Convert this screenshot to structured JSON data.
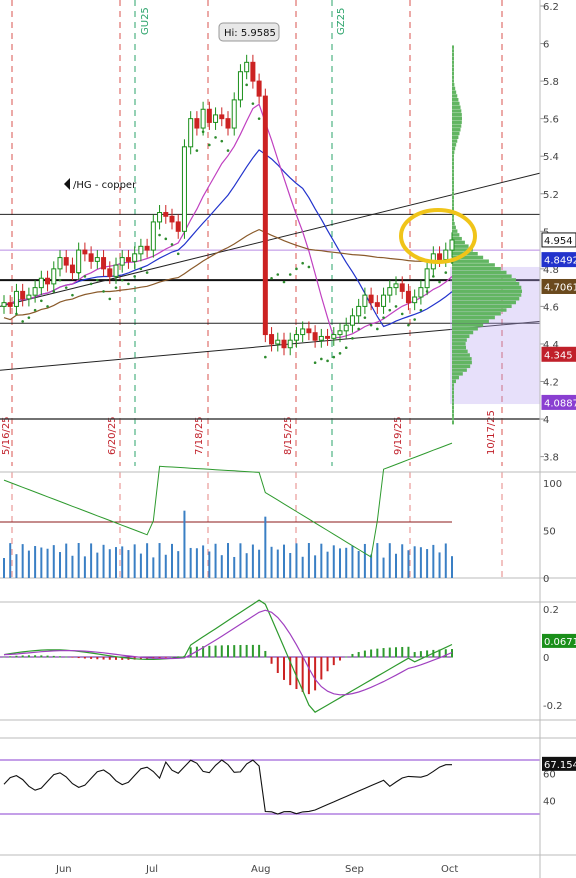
{
  "chart_data": {
    "type": "candlestick",
    "symbol_label": "/HG - copper",
    "x_month_labels": [
      "Jun",
      "Jul",
      "Aug",
      "Sep",
      "Oct"
    ],
    "date_markers": [
      "5/16/25",
      "6/20/25",
      "7/18/25",
      "8/15/25",
      "9/19/25",
      "10/17/25"
    ],
    "expiry_markers": [
      "GU25",
      "GZ25"
    ],
    "price_axis": {
      "ticks": [
        3.8,
        4.0,
        4.2,
        4.4,
        4.6,
        4.8,
        5.0,
        5.2,
        5.4,
        5.6,
        5.8,
        6.0,
        6.2
      ],
      "ylim": [
        3.75,
        6.2
      ]
    },
    "price_badges": [
      {
        "value": "4.954",
        "color": "#111111"
      },
      {
        "value": "4.8492",
        "color": "#2233cc"
      },
      {
        "value": "4.7061",
        "color": "#6b4a1e"
      },
      {
        "value": "4.345",
        "color": "#c0202a"
      },
      {
        "value": "4.0887",
        "color": "#8a3fd1"
      }
    ],
    "high_annotation": "Hi: 5.9585",
    "closes": [
      4.62,
      4.6,
      4.68,
      4.64,
      4.66,
      4.7,
      4.75,
      4.72,
      4.8,
      4.86,
      4.82,
      4.78,
      4.9,
      4.88,
      4.84,
      4.86,
      4.8,
      4.76,
      4.82,
      4.86,
      4.84,
      4.88,
      4.92,
      4.9,
      5.05,
      5.1,
      5.08,
      5.05,
      5.0,
      5.45,
      5.6,
      5.55,
      5.65,
      5.58,
      5.62,
      5.6,
      5.55,
      5.7,
      5.85,
      5.9,
      5.8,
      5.72,
      4.45,
      4.4,
      4.42,
      4.38,
      4.42,
      4.45,
      4.48,
      4.46,
      4.42,
      4.44,
      4.43,
      4.45,
      4.47,
      4.5,
      4.55,
      4.6,
      4.66,
      4.62,
      4.6,
      4.66,
      4.7,
      4.72,
      4.68,
      4.62,
      4.65,
      4.7,
      4.8,
      4.88,
      4.85,
      4.9,
      4.954
    ],
    "volume_axis": {
      "ticks": [
        0,
        50,
        100
      ]
    },
    "macd_axis": {
      "ticks": [
        -0.2,
        0,
        0.2
      ],
      "badge": "0.0671"
    },
    "rsi_axis": {
      "ticks": [
        40,
        60
      ],
      "badge": "67.154"
    }
  }
}
